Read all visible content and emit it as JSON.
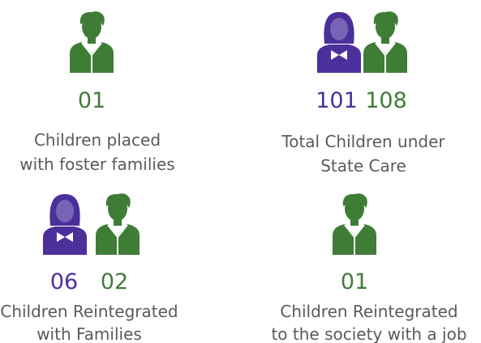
{
  "stats": [
    {
      "numbers": [
        "01"
      ],
      "label": [
        "Children placed",
        "with foster families"
      ]
    },
    {
      "numbers": [
        "101",
        "108"
      ],
      "label": [
        "Total Children under",
        "State Care"
      ]
    },
    {
      "numbers": [
        "06",
        "02"
      ],
      "label": [
        "Children Reintegrated",
        "with Families"
      ]
    },
    {
      "numbers": [
        "01"
      ],
      "label": [
        "Children Reintegrated",
        "to the society with a job"
      ]
    }
  ]
}
